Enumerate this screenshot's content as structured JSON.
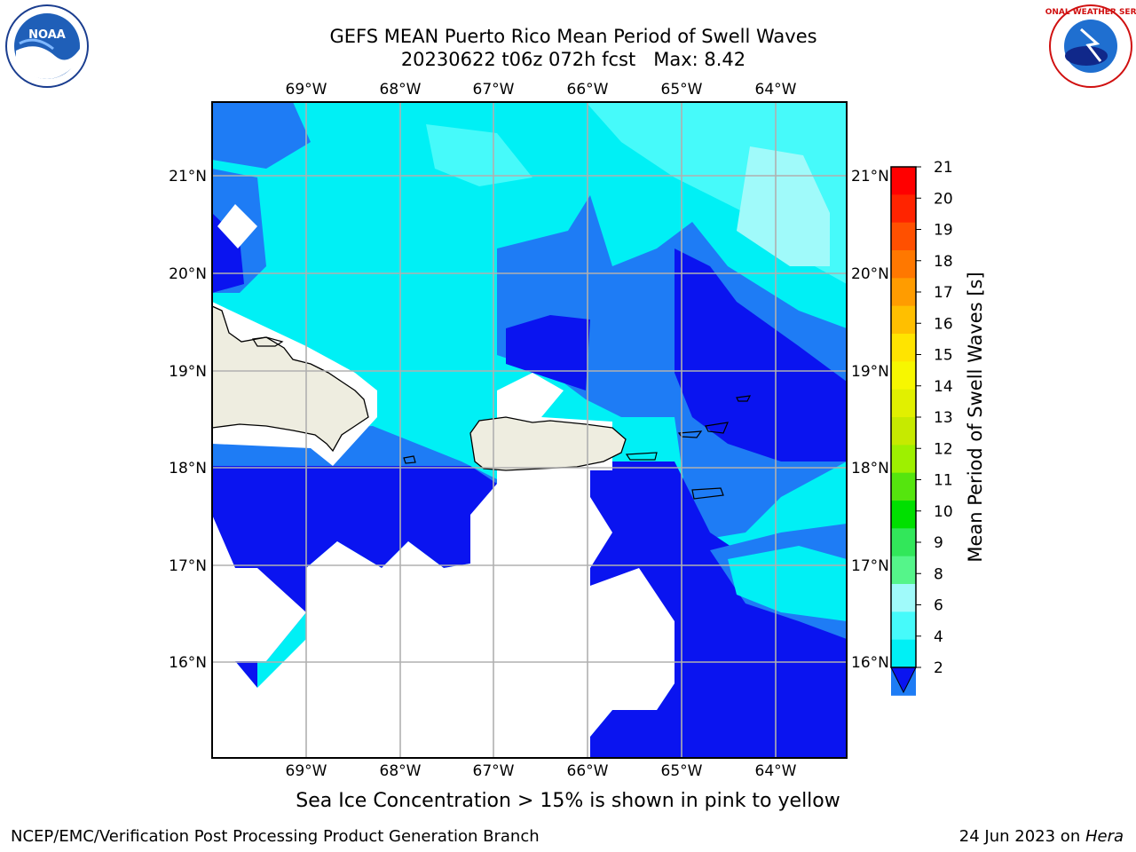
{
  "header": {
    "title_line1": "GEFS MEAN Puerto Rico Mean Period of Swell Waves",
    "title_line2": "20230622 t06z 072h fcst   Max: 8.42"
  },
  "logos": {
    "left": "NOAA",
    "right_text": "NATIONAL WEATHER SERVICE"
  },
  "map": {
    "lon_labels": [
      "69°W",
      "68°W",
      "67°W",
      "66°W",
      "65°W",
      "64°W"
    ],
    "lat_labels": [
      "21°N",
      "20°N",
      "19°N",
      "18°N",
      "17°N",
      "16°N"
    ],
    "colors": {
      "white": "#ffffff",
      "band2": "#0a14f0",
      "band4": "#1e7cf5",
      "band6": "#00f0f5",
      "band8": "#46fafa",
      "band9": "#a0fafa",
      "land": "#eeede0",
      "grid": "#b0b0b0"
    }
  },
  "colorbar": {
    "label": "Mean Period of Swell Waves [s]",
    "ticks": [
      "21",
      "20",
      "19",
      "18",
      "17",
      "16",
      "15",
      "14",
      "13",
      "12",
      "11",
      "10",
      "9",
      "8",
      "6",
      "4",
      "2"
    ],
    "colors": [
      "#ff0000",
      "#ff2400",
      "#ff5000",
      "#ff7800",
      "#ff9c00",
      "#ffbf00",
      "#ffe400",
      "#f7f700",
      "#e1f000",
      "#c6ea00",
      "#9ef000",
      "#55e50e",
      "#00e000",
      "#32e75a",
      "#55f58a",
      "#a0fafa",
      "#46fafa",
      "#00f0f5",
      "#1e7cf5",
      "#0a14f0"
    ]
  },
  "footer": {
    "note": "Sea Ice Concentration > 15% is shown in pink to yellow",
    "left": "NCEP/EMC/Verification Post Processing Product Generation Branch",
    "right_date": "24 Jun 2023 on ",
    "right_machine": "Hera"
  }
}
